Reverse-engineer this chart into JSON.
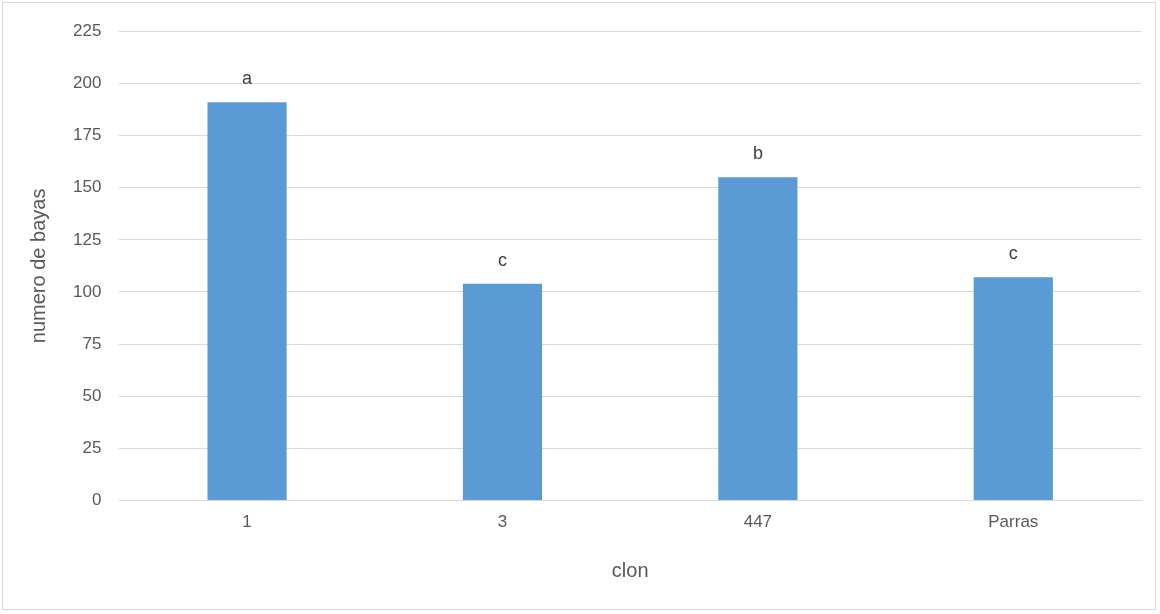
{
  "chart_data": {
    "type": "bar",
    "xlabel": "clon",
    "ylabel": "numero de bayas",
    "categories": [
      "1",
      "3",
      "447",
      "Parras"
    ],
    "values": [
      191,
      104,
      155,
      107
    ],
    "color": "#5b9bd5",
    "ylim": [
      0,
      225
    ],
    "yticks": [
      0,
      25,
      50,
      75,
      100,
      125,
      150,
      175,
      200,
      225
    ],
    "grid": "y",
    "annotations": [
      {
        "text": "a",
        "x": "1",
        "y": 191
      },
      {
        "text": "c",
        "x": "3",
        "y": 104
      },
      {
        "text": "b",
        "x": "447",
        "y": 155
      },
      {
        "text": "c",
        "x": "Parras",
        "y": 107
      }
    ]
  }
}
